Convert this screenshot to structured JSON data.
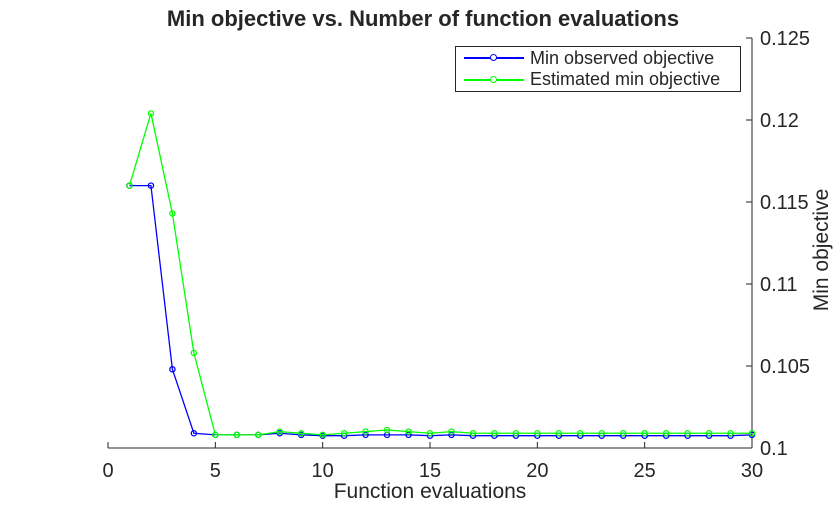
{
  "chart_data": {
    "type": "line",
    "title": "Min objective vs. Number of function evaluations",
    "xlabel": "Function evaluations",
    "ylabel": "Min objective",
    "grid": false,
    "legend_position": "top-right-inside",
    "y_axis_side": "right",
    "axis_color": "#262626",
    "xlim": [
      0,
      30
    ],
    "ylim": [
      0.1,
      0.125
    ],
    "xticks": [
      0,
      5,
      10,
      15,
      20,
      25,
      30
    ],
    "xtick_labels": [
      "0",
      "5",
      "10",
      "15",
      "20",
      "25",
      "30"
    ],
    "yticks": [
      0.1,
      0.105,
      0.11,
      0.115,
      0.12,
      0.125
    ],
    "ytick_labels": [
      "0.1",
      "0.105",
      "0.11",
      "0.115",
      "0.12",
      "0.125"
    ],
    "x": [
      1,
      2,
      3,
      4,
      5,
      6,
      7,
      8,
      9,
      10,
      11,
      12,
      13,
      14,
      15,
      16,
      17,
      18,
      19,
      20,
      21,
      22,
      23,
      24,
      25,
      26,
      27,
      28,
      29,
      30
    ],
    "series": [
      {
        "name": "Min observed objective",
        "color": "#0000ff",
        "marker": "circle",
        "values": [
          0.116,
          0.116,
          0.1048,
          0.1009,
          0.1008,
          0.1008,
          0.1008,
          0.1009,
          0.1008,
          0.10075,
          0.10075,
          0.1008,
          0.1008,
          0.1008,
          0.10075,
          0.1008,
          0.10075,
          0.10075,
          0.10075,
          0.10075,
          0.10075,
          0.10075,
          0.10075,
          0.10075,
          0.10075,
          0.10075,
          0.10075,
          0.10075,
          0.10075,
          0.1008
        ]
      },
      {
        "name": "Estimated min objective",
        "color": "#00ff00",
        "marker": "circle",
        "values": [
          0.116,
          0.1204,
          0.1143,
          0.1058,
          0.1008,
          0.1008,
          0.1008,
          0.101,
          0.1009,
          0.1008,
          0.1009,
          0.101,
          0.1011,
          0.101,
          0.1009,
          0.101,
          0.1009,
          0.1009,
          0.1009,
          0.1009,
          0.1009,
          0.1009,
          0.1009,
          0.1009,
          0.1009,
          0.1009,
          0.1009,
          0.1009,
          0.1009,
          0.1009
        ]
      }
    ]
  },
  "legend": {
    "items": [
      {
        "label": "Min observed objective",
        "color": "#0000ff"
      },
      {
        "label": "Estimated min objective",
        "color": "#00ff00"
      }
    ]
  }
}
